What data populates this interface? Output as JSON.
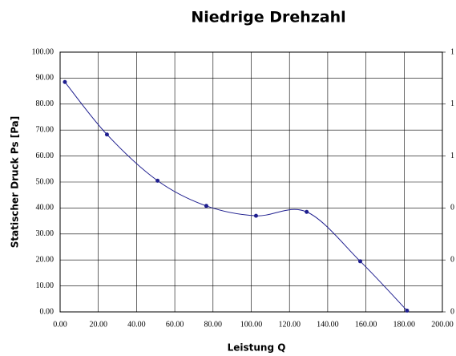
{
  "chart_data": {
    "type": "line",
    "title": "Niedrige Drehzahl",
    "xlabel": "Leistung Q",
    "ylabel": "Statischer Druck Ps [Pa]",
    "x": [
      2.5,
      24.5,
      51,
      76.5,
      102.5,
      129,
      157,
      181.5
    ],
    "series": [
      {
        "color": "#1f1f8f",
        "values": [
          88.5,
          68.3,
          50.5,
          40.8,
          37,
          38.5,
          19.5,
          0.5
        ]
      }
    ],
    "xlim": [
      0,
      200
    ],
    "xticks": [
      {
        "value": 0,
        "label": "0.00"
      },
      {
        "value": 20,
        "label": "20.00"
      },
      {
        "value": 40,
        "label": "40.00"
      },
      {
        "value": 60,
        "label": "60.00"
      },
      {
        "value": 80,
        "label": "80.00"
      },
      {
        "value": 100,
        "label": "100.00"
      },
      {
        "value": 120,
        "label": "120.00"
      },
      {
        "value": 140,
        "label": "140.00"
      },
      {
        "value": 160,
        "label": "160.00"
      },
      {
        "value": 180,
        "label": "180.00"
      },
      {
        "value": 200,
        "label": "200.00"
      }
    ],
    "ylim": [
      0,
      100
    ],
    "yticks": [
      {
        "value": 0,
        "label": "0.00"
      },
      {
        "value": 10,
        "label": "10.00"
      },
      {
        "value": 20,
        "label": "20.00"
      },
      {
        "value": 30,
        "label": "30.00"
      },
      {
        "value": 40,
        "label": "40.00"
      },
      {
        "value": 50,
        "label": "50.00"
      },
      {
        "value": 60,
        "label": "60.00"
      },
      {
        "value": 70,
        "label": "70.00"
      },
      {
        "value": 80,
        "label": "80.00"
      },
      {
        "value": 90,
        "label": "90.00"
      },
      {
        "value": 100,
        "label": "100.00"
      }
    ],
    "y2lim": [
      0,
      1
    ],
    "y2ticks": [
      {
        "value": 0,
        "label": "0"
      },
      {
        "value": 0.2,
        "label": "0"
      },
      {
        "value": 0.4,
        "label": "0"
      },
      {
        "value": 0.6,
        "label": "1"
      },
      {
        "value": 0.8,
        "label": "1"
      },
      {
        "value": 1,
        "label": "1"
      }
    ],
    "grid": true
  }
}
